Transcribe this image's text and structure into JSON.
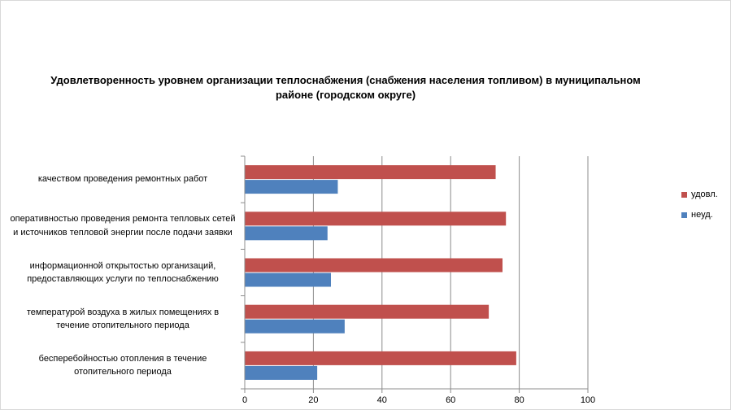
{
  "chart_data": {
    "type": "bar",
    "orientation": "horizontal",
    "title": "Удовлетворенность уровнем организации теплоснабжения (снабжения населения топливом) в муниципальном районе (городском округе)",
    "categories": [
      "бесперебойностью  отопления в течение отопительного периода",
      "температурой воздуха в жилых помещениях  в течение  отопительного периода",
      "информационной открытостью организаций, предоставляющих услуги по теплоснабжению",
      "оперативностью  проведения  ремонта тепловых сетей и источников тепловой энергии после подачи заявки",
      "качеством  проведения  ремонтных работ"
    ],
    "series": [
      {
        "name": "неуд.",
        "color": "#4f81bd",
        "values": [
          21,
          29,
          25,
          24,
          27
        ]
      },
      {
        "name": "удовл.",
        "color": "#c0504d",
        "values": [
          79,
          71,
          75,
          76,
          73
        ]
      }
    ],
    "xlim": [
      0,
      100
    ],
    "x_ticks": [
      "0",
      "20",
      "40",
      "60",
      "80",
      "100"
    ],
    "grid": "vertical",
    "legend_position": "right",
    "legend_order": [
      "удовл.",
      "неуд."
    ]
  }
}
